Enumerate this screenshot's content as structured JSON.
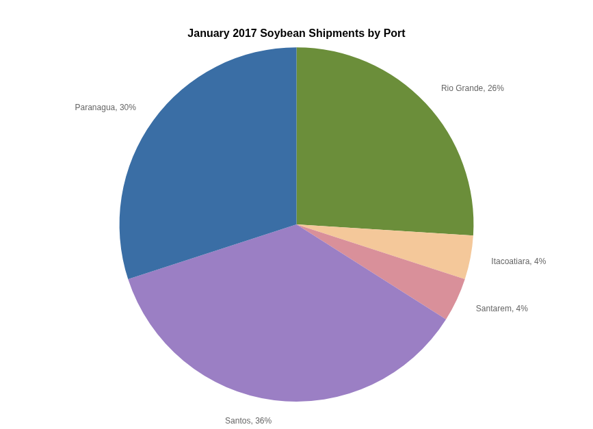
{
  "chart_data": {
    "type": "pie",
    "title": "January 2017 Soybean Shipments by Port",
    "categories": [
      "Rio Grande, 26%",
      "Itacoatiara, 4%",
      "Santarem, 4%",
      "Santos, 36%",
      "Paranagua, 30%"
    ],
    "values": [
      26,
      4,
      4,
      36,
      30
    ],
    "colors": [
      "#6b8e3a",
      "#f4c89a",
      "#d9909a",
      "#9b7fc4",
      "#3a6ea5"
    ]
  }
}
